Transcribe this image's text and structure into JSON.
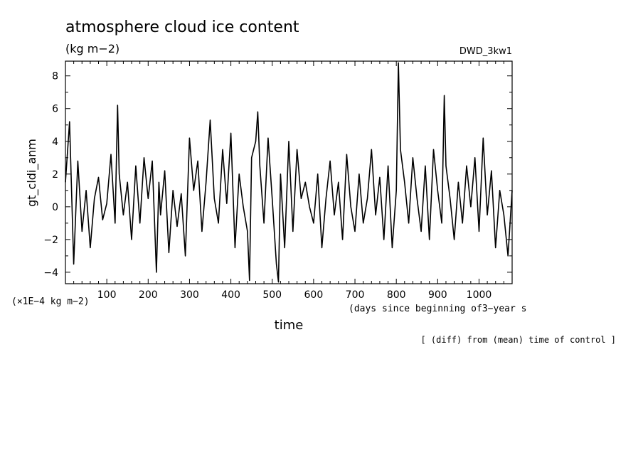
{
  "chart_data": {
    "type": "line",
    "title": "atmosphere cloud ice content",
    "units_label": "(kg m−2)",
    "model_label": "DWD_3kw1",
    "ylabel": "gt_cldi_anm",
    "xlabel": "time",
    "x_units_label": "(days since beginning of3−year s",
    "y_scale_label": "(×1E−4 kg m−2)",
    "footnote": "[ (diff) from (mean) time of control ]",
    "xlim": [
      0,
      1080
    ],
    "ylim": [
      -4.7,
      8.9
    ],
    "x_ticks": [
      100,
      200,
      300,
      400,
      500,
      600,
      700,
      800,
      900,
      1000
    ],
    "x_tick_labels": [
      "100",
      "200",
      "300",
      "400",
      "500",
      "600",
      "700",
      "800",
      "900",
      "1000"
    ],
    "y_ticks": [
      -4,
      -2,
      0,
      2,
      4,
      6,
      8
    ],
    "y_tick_labels": [
      "−4",
      "−2",
      "0",
      "2",
      "4",
      "6",
      "8"
    ],
    "line_color": "#000000",
    "series": [
      {
        "x": [
          0,
          10,
          20,
          30,
          40,
          50,
          60,
          70,
          80,
          90,
          100,
          110,
          120,
          126,
          130,
          140,
          150,
          160,
          170,
          180,
          190,
          200,
          210,
          220,
          226,
          230,
          240,
          250,
          260,
          270,
          280,
          290,
          300,
          310,
          320,
          330,
          340,
          350,
          360,
          370,
          380,
          390,
          400,
          410,
          420,
          430,
          440,
          445,
          450,
          460,
          465,
          470,
          480,
          490,
          500,
          510,
          515,
          520,
          530,
          540,
          550,
          560,
          570,
          580,
          590,
          600,
          610,
          620,
          630,
          640,
          650,
          660,
          670,
          680,
          690,
          700,
          710,
          720,
          730,
          740,
          750,
          760,
          770,
          780,
          790,
          800,
          805,
          810,
          820,
          830,
          840,
          850,
          860,
          870,
          880,
          890,
          900,
          910,
          916,
          920,
          930,
          940,
          950,
          960,
          970,
          980,
          990,
          1000,
          1010,
          1020,
          1030,
          1040,
          1050,
          1060,
          1070,
          1080
        ],
        "y": [
          1.5,
          5.2,
          -3.5,
          2.8,
          -1.5,
          1.0,
          -2.5,
          0.5,
          1.8,
          -0.8,
          0.2,
          3.2,
          -1.0,
          6.2,
          2.0,
          -0.5,
          1.5,
          -2.0,
          2.5,
          -1.0,
          3.0,
          0.5,
          2.8,
          -4.0,
          1.5,
          -0.5,
          2.2,
          -2.8,
          1.0,
          -1.2,
          0.8,
          -3.0,
          4.2,
          1.0,
          2.8,
          -1.5,
          1.5,
          5.3,
          0.5,
          -1.0,
          3.5,
          0.2,
          4.5,
          -2.5,
          2.0,
          0.0,
          -1.5,
          -4.5,
          3.0,
          4.0,
          5.8,
          2.5,
          -1.0,
          4.2,
          0.5,
          -3.5,
          -4.6,
          2.0,
          -2.5,
          4.0,
          -1.5,
          3.5,
          0.5,
          1.5,
          0.0,
          -1.0,
          2.0,
          -2.5,
          0.5,
          2.8,
          -0.5,
          1.5,
          -2.0,
          3.2,
          0.0,
          -1.5,
          2.0,
          -1.0,
          0.5,
          3.5,
          -0.5,
          1.8,
          -2.0,
          2.5,
          -2.5,
          1.0,
          8.8,
          3.5,
          1.5,
          -1.0,
          3.0,
          0.5,
          -1.5,
          2.5,
          -2.0,
          3.5,
          1.0,
          -1.0,
          6.8,
          2.5,
          0.5,
          -2.0,
          1.5,
          -1.0,
          2.5,
          0.0,
          3.0,
          -1.5,
          4.2,
          -0.5,
          2.2,
          -2.5,
          1.0,
          -0.5,
          -3.0,
          1.0
        ]
      }
    ]
  }
}
